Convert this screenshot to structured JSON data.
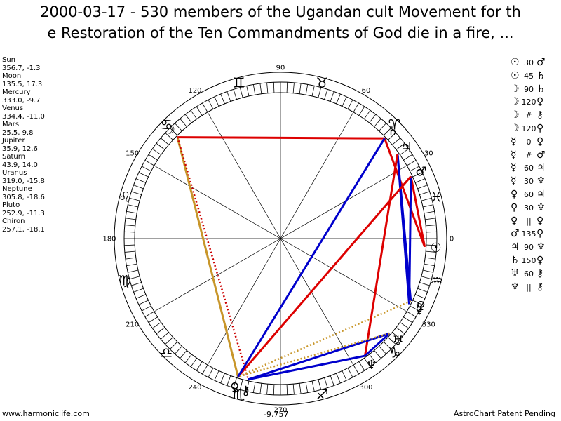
{
  "title_line1": "2000-03-17 - 530 members of the Ugandan cult Movement for th",
  "title_line2": "e Restoration of the Ten Commandments of God die in a fire, ...",
  "planets": [
    {
      "name": "Sun",
      "position": "356.7, -1.3",
      "glyph": "☉",
      "lon": 356.7
    },
    {
      "name": "Moon",
      "position": "135.5, 17.3",
      "glyph": "☽",
      "lon": 135.5
    },
    {
      "name": "Mercury",
      "position": "333.0, -9.7",
      "glyph": "☿",
      "lon": 333.0
    },
    {
      "name": "Venus",
      "position": "334.4, -11.0",
      "glyph": "♀",
      "lon": 334.4
    },
    {
      "name": "Mars",
      "position": "25.5, 9.8",
      "glyph": "♂",
      "lon": 25.5
    },
    {
      "name": "Jupiter",
      "position": "35.9, 12.6",
      "glyph": "♃",
      "lon": 35.9
    },
    {
      "name": "Saturn",
      "position": "43.9, 14.0",
      "glyph": "♄",
      "lon": 43.9
    },
    {
      "name": "Uranus",
      "position": "319.0, -15.8",
      "glyph": "♅",
      "lon": 319.0
    },
    {
      "name": "Neptune",
      "position": "305.8, -18.6",
      "glyph": "♆",
      "lon": 305.8
    },
    {
      "name": "Pluto",
      "position": "252.9, -11.3",
      "glyph": "♀",
      "lon": 252.9
    },
    {
      "name": "Chiron",
      "position": "257.1, -18.1",
      "glyph": "⚷",
      "lon": 257.1
    }
  ],
  "aspects": [
    {
      "p1": "☉",
      "angle": "30",
      "p2": "♂"
    },
    {
      "p1": "☉",
      "angle": "45",
      "p2": "♄"
    },
    {
      "p1": "☽",
      "angle": "90",
      "p2": "♄"
    },
    {
      "p1": "☽",
      "angle": "120",
      "p2": "♀"
    },
    {
      "p1": "☽",
      "angle": "#",
      "p2": "⚷"
    },
    {
      "p1": "☽",
      "angle": "120",
      "p2": "♀"
    },
    {
      "p1": "☿",
      "angle": "0",
      "p2": "♀"
    },
    {
      "p1": "☿",
      "angle": "#",
      "p2": "♂"
    },
    {
      "p1": "☿",
      "angle": "60",
      "p2": "♃"
    },
    {
      "p1": "☿",
      "angle": "30",
      "p2": "♆"
    },
    {
      "p1": "♀",
      "angle": "60",
      "p2": "♃"
    },
    {
      "p1": "♀",
      "angle": "30",
      "p2": "♆"
    },
    {
      "p1": "♀",
      "angle": "||",
      "p2": "♀"
    },
    {
      "p1": "♂",
      "angle": "135",
      "p2": "♀"
    },
    {
      "p1": "♃",
      "angle": "90",
      "p2": "♆"
    },
    {
      "p1": "♄",
      "angle": "150",
      "p2": "♀"
    },
    {
      "p1": "♅",
      "angle": "60",
      "p2": "⚷"
    },
    {
      "p1": "♆",
      "angle": "||",
      "p2": "⚷"
    }
  ],
  "wheel": {
    "degree_labels": [
      "0",
      "30",
      "60",
      "90",
      "120",
      "150",
      "180",
      "210",
      "240",
      "270",
      "300",
      "330"
    ],
    "signs": [
      "♓",
      "♈",
      "♉",
      "♊",
      "♋",
      "♌",
      "♍",
      "♎",
      "♏",
      "♐",
      "♑",
      "♒"
    ],
    "aspect_lines": [
      {
        "from": 356.7,
        "to": 25.5,
        "color": "#dd0000",
        "style": "solid"
      },
      {
        "from": 356.7,
        "to": 43.9,
        "color": "#dd0000",
        "style": "solid"
      },
      {
        "from": 135.5,
        "to": 43.9,
        "color": "#dd0000",
        "style": "solid"
      },
      {
        "from": 135.5,
        "to": 252.9,
        "color": "#c8962a",
        "style": "solid"
      },
      {
        "from": 135.5,
        "to": 257.1,
        "color": "#cc0000",
        "style": "dotted"
      },
      {
        "from": 333.0,
        "to": 35.9,
        "color": "#0000cc",
        "style": "solid"
      },
      {
        "from": 333.0,
        "to": 25.5,
        "color": "#0000cc",
        "style": "solid"
      },
      {
        "from": 334.4,
        "to": 35.9,
        "color": "#0000cc",
        "style": "solid"
      },
      {
        "from": 334.4,
        "to": 252.9,
        "color": "#c8962a",
        "style": "dotted"
      },
      {
        "from": 25.5,
        "to": 252.9,
        "color": "#dd0000",
        "style": "solid"
      },
      {
        "from": 35.9,
        "to": 305.8,
        "color": "#dd0000",
        "style": "solid"
      },
      {
        "from": 43.9,
        "to": 252.9,
        "color": "#0000cc",
        "style": "solid"
      },
      {
        "from": 319.0,
        "to": 257.1,
        "color": "#0000cc",
        "style": "solid"
      },
      {
        "from": 305.8,
        "to": 257.1,
        "color": "#0000cc",
        "style": "solid"
      },
      {
        "from": 319.0,
        "to": 305.8,
        "color": "#0000cc",
        "style": "solid"
      },
      {
        "from": 319.0,
        "to": 252.9,
        "color": "#c8962a",
        "style": "dotted"
      }
    ]
  },
  "footer": {
    "left": "www.harmoniclife.com",
    "center": "-9,757",
    "right": "AstroChart Patent Pending"
  }
}
